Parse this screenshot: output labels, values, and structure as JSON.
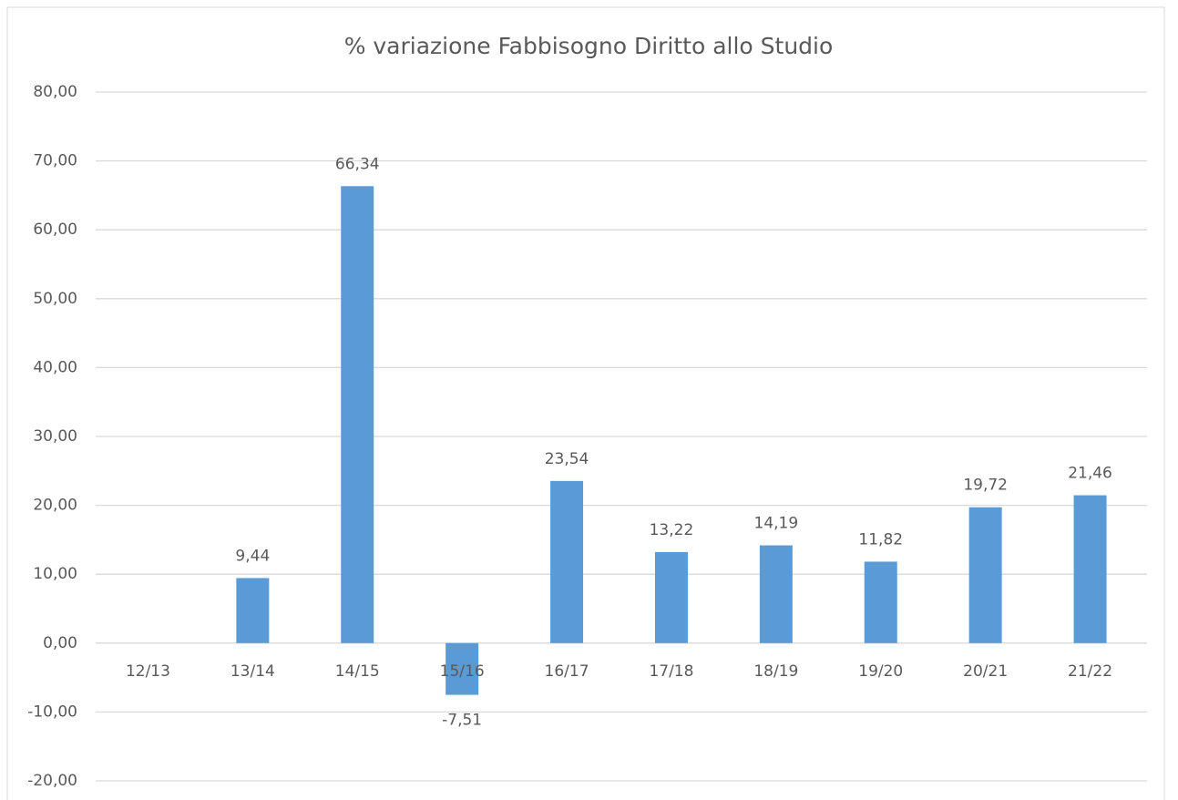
{
  "chart_data": {
    "type": "bar",
    "title": "% variazione Fabbisogno Diritto allo Studio",
    "categories": [
      "12/13",
      "13/14",
      "14/15",
      "15/16",
      "16/17",
      "17/18",
      "18/19",
      "19/20",
      "20/21",
      "21/22"
    ],
    "values": [
      null,
      9.44,
      66.34,
      -7.51,
      23.54,
      13.22,
      14.19,
      11.82,
      19.72,
      21.46
    ],
    "value_labels": [
      null,
      "9,44",
      "66,34",
      "-7,51",
      "23,54",
      "13,22",
      "14,19",
      "11,82",
      "19,72",
      "21,46"
    ],
    "color": "#5b9bd5",
    "ylim": [
      -20,
      80
    ],
    "yticks": [
      {
        "value": -20,
        "label": "-20,00"
      },
      {
        "value": -10,
        "label": "-10,00"
      },
      {
        "value": 0,
        "label": "0,00"
      },
      {
        "value": 10,
        "label": "10,00"
      },
      {
        "value": 20,
        "label": "20,00"
      },
      {
        "value": 30,
        "label": "30,00"
      },
      {
        "value": 40,
        "label": "40,00"
      },
      {
        "value": 50,
        "label": "50,00"
      },
      {
        "value": 60,
        "label": "60,00"
      },
      {
        "value": 70,
        "label": "70,00"
      },
      {
        "value": 80,
        "label": "80,00"
      }
    ],
    "grid": true
  }
}
